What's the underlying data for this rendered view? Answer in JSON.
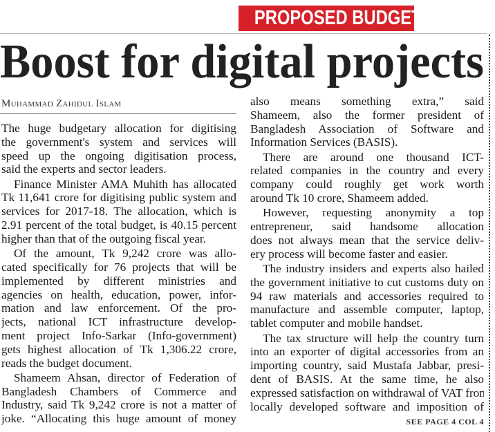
{
  "banner": "PROPOSED BUDGET",
  "headline": "Boost for digital projects",
  "byline": "Muhammad Zahidul Islam",
  "left_column": {
    "paragraphs": [
      {
        "indent": false,
        "lines": [
          "The huge budgetary allocation for digitising",
          "the government's system and services will",
          "speed up the ongoing digitisation process,",
          "said the experts and sector leaders."
        ]
      },
      {
        "indent": true,
        "lines": [
          "Finance Minister AMA Muhith has allocated",
          "Tk 11,641 crore for digitising public system and",
          "services for 2017-18. The allocation, which is",
          "2.91 percent of the total budget, is 40.15 percent",
          "higher than that of the outgoing fiscal year."
        ]
      },
      {
        "indent": true,
        "lines": [
          "Of the amount, Tk 9,242 crore was allo-",
          "cated specifically for 76 projects that will be",
          "implemented by different ministries and",
          "agencies on health, education, power, infor-",
          "mation and law enforcement. Of the pro-",
          "jects, national ICT infrastructure develop-",
          "ment project Info-Sarkar (Info-government)",
          "gets highest allocation of Tk 1,306.22 crore,",
          "reads the budget document."
        ]
      },
      {
        "indent": true,
        "continues": true,
        "lines": [
          "Shameem Ahsan, director of Federation of",
          "Bangladesh Chambers of Commerce and",
          "Industry, said Tk 9,242 crore is not a matter of",
          "joke. “Allocating this huge amount of money"
        ]
      }
    ]
  },
  "right_column": {
    "paragraphs": [
      {
        "indent": false,
        "lines": [
          "also means something extra,” said",
          "Shameem, also the former president of",
          "Bangladesh Association of Software and",
          "Information Services (BASIS)."
        ]
      },
      {
        "indent": true,
        "lines": [
          "There are around one thousand ICT-",
          "related companies in the country and every",
          "company could roughly get work worth",
          "around Tk 10 crore, Shameem added."
        ]
      },
      {
        "indent": true,
        "lines": [
          "However, requesting anonymity a top",
          "entrepreneur, said handsome allocation",
          "does not always mean that the service deliv-",
          "ery process will become faster and easier."
        ]
      },
      {
        "indent": true,
        "lines": [
          "The industry insiders and experts also hailed",
          "the government initiative to cut customs duty on",
          "94 raw materials and accessories required to",
          "manufacture and assemble computer, laptop,",
          "tablet computer and mobile handset."
        ]
      },
      {
        "indent": true,
        "continues": true,
        "lines": [
          "The tax structure will help the country turn",
          "into an exporter of digital accessories from an",
          "importing country, said Mustafa Jabbar, presi-",
          "dent of BASIS. At the same time, he also",
          "expressed satisfaction on withdrawal of VAT from",
          "locally developed software and imposition of"
        ]
      }
    ]
  },
  "jump_line": "SEE PAGE 4 COL 4"
}
